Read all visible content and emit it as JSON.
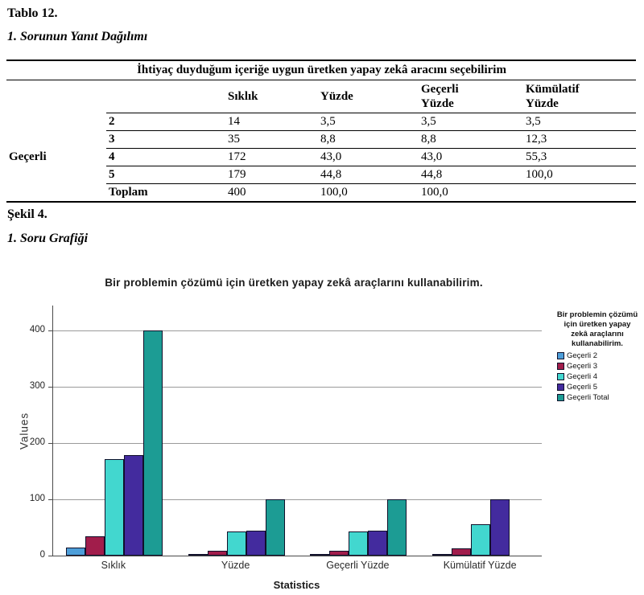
{
  "page": {
    "table_label": "Tablo 12.",
    "table_caption": "1. Sorunun Yanıt Dağılımı",
    "figure_label": "Şekil 4.",
    "figure_caption": "1. Soru Grafiği"
  },
  "table": {
    "title": "İhtiyaç duyduğum içeriğe uygun üretken yapay zekâ aracını seçebilirim",
    "col_headers": [
      "Sıklık",
      "Yüzde",
      "Geçerli Yüzde",
      "Kümülatif Yüzde"
    ],
    "row_group_label": "Geçerli",
    "rows": [
      {
        "label": "2",
        "values": [
          "14",
          "3,5",
          "3,5",
          "3,5"
        ]
      },
      {
        "label": "3",
        "values": [
          "35",
          "8,8",
          "8,8",
          "12,3"
        ]
      },
      {
        "label": "4",
        "values": [
          "172",
          "43,0",
          "43,0",
          "55,3"
        ]
      },
      {
        "label": "5",
        "values": [
          "179",
          "44,8",
          "44,8",
          "100,0"
        ]
      },
      {
        "label": "Toplam",
        "values": [
          "400",
          "100,0",
          "100,0",
          ""
        ]
      }
    ]
  },
  "chart_data": {
    "type": "bar",
    "title": "Bir problemin çözümü için üretken yapay zekâ araçlarını kullanabilirim.",
    "xlabel": "Statistics",
    "ylabel": "Values",
    "categories": [
      "Sıklık",
      "Yüzde",
      "Geçerli Yüzde",
      "Kümülatif Yüzde"
    ],
    "series": [
      {
        "name": "Geçerli 2",
        "color": "#4D9ED9",
        "values": [
          14,
          3.5,
          3.5,
          3.5
        ]
      },
      {
        "name": "Geçerli 3",
        "color": "#A11D4B",
        "values": [
          35,
          8.8,
          8.8,
          12.3
        ]
      },
      {
        "name": "Geçerli 4",
        "color": "#42D7CF",
        "values": [
          172,
          43.0,
          43.0,
          55.3
        ]
      },
      {
        "name": "Geçerli 5",
        "color": "#432B9E",
        "values": [
          179,
          44.8,
          44.8,
          100.0
        ]
      },
      {
        "name": "Geçerli Total",
        "color": "#1C9C94",
        "values": [
          400,
          100.0,
          100.0,
          null
        ]
      }
    ],
    "ylim": [
      0,
      430
    ],
    "yticks": [
      0,
      100,
      200,
      300,
      400
    ],
    "grid": true,
    "legend_position": "right",
    "legend_title": "Bir problemin çözümü için üretken yapay zekâ araçlarını kullanabilirim."
  }
}
